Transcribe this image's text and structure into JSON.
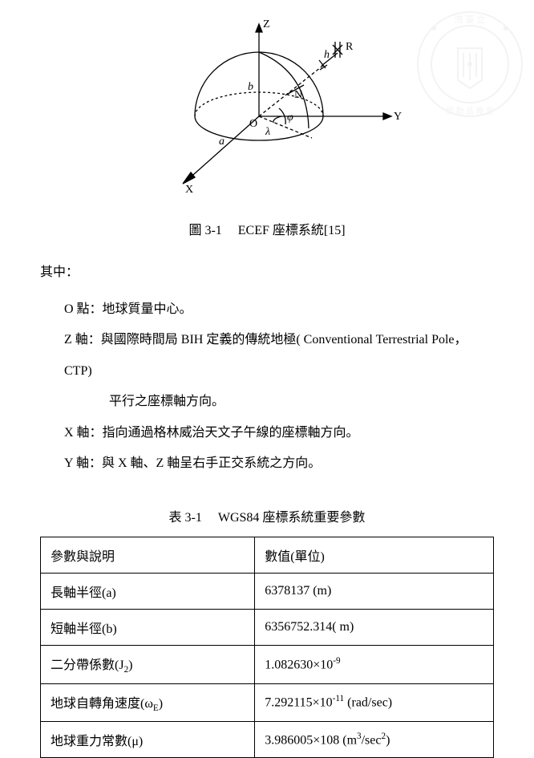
{
  "watermark": {
    "outer_text_top": "灣 臺 立",
    "outer_text_bottom": "學 勤 品 教 愛",
    "circle_color": "#d8d8d8",
    "text_color": "#d8d8d8"
  },
  "figure": {
    "labels": {
      "Z": "Z",
      "Y": "Y",
      "X": "X",
      "O": "O",
      "a": "a",
      "b": "b",
      "N": "N",
      "R": "R",
      "h": "h",
      "lambda": "λ",
      "phi": "φ"
    },
    "line_color": "#000000"
  },
  "figure_caption": "圖  3-1 　ECEF 座標系統[15]",
  "section_label": "其中：",
  "definitions": {
    "o_label": "O  點：地球質量中心。",
    "z_label": "Z  軸：與國際時間局  BIH  定義的傳統地極( Conventional Terrestrial Pole，CTP)",
    "z_cont": "平行之座標軸方向。",
    "x_label": "X 軸：指向通過格林威治天文子午線的座標軸方向。",
    "y_label": "Y 軸：與 X 軸、Z 軸呈右手正交系統之方向。"
  },
  "table_caption": "表  3-1 　WGS84 座標系統重要參數",
  "table": {
    "header_param": "參數與說明",
    "header_value": "數值(單位)",
    "rows": [
      {
        "param_html": "長軸半徑(a)",
        "value_html": "6378137 (m)"
      },
      {
        "param_html": "短軸半徑(b)",
        "value_html": "6356752.314( m)"
      },
      {
        "param_html": "二分帶係數(J<sub>2</sub>)",
        "value_html": "1.082630×10<sup>-9</sup>"
      },
      {
        "param_html": "地球自轉角速度(ω<sub>E</sub>)",
        "value_html": "7.292115×10<sup>-11</sup> (rad/sec)"
      },
      {
        "param_html": "地球重力常數(μ)",
        "value_html": "3.986005×108 (m<sup>3</sup>/sec<sup>2</sup>)"
      }
    ]
  }
}
